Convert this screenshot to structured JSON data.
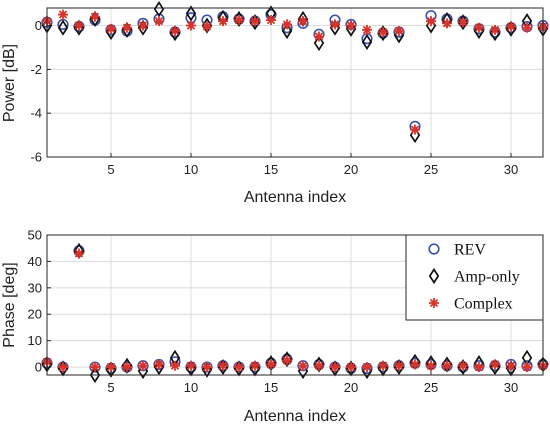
{
  "chart_data": [
    {
      "type": "scatter",
      "xlabel": "Antenna index",
      "ylabel": "Power [dB]",
      "xlim": [
        1,
        32
      ],
      "ylim": [
        -6,
        0.8
      ],
      "xticks": [
        5,
        10,
        15,
        20,
        25,
        30
      ],
      "yticks": [
        0,
        -2,
        -4,
        -6
      ],
      "grid": true,
      "series": [
        {
          "name": "REV",
          "marker": "circle",
          "color": "#3a4fa8",
          "x": [
            1,
            2,
            3,
            4,
            5,
            6,
            7,
            8,
            9,
            10,
            11,
            12,
            13,
            14,
            15,
            16,
            17,
            18,
            19,
            20,
            21,
            22,
            23,
            24,
            25,
            26,
            27,
            28,
            29,
            30,
            31,
            32
          ],
          "values": [
            0.15,
            0.05,
            -0.05,
            0.25,
            -0.2,
            -0.25,
            0.1,
            0.3,
            -0.3,
            0.35,
            0.25,
            0.4,
            0.3,
            0.2,
            0.5,
            -0.1,
            0.1,
            -0.4,
            0.25,
            0.05,
            -0.6,
            -0.35,
            -0.3,
            -4.6,
            0.45,
            0.3,
            0.2,
            -0.15,
            -0.3,
            -0.1,
            -0.05,
            0.0
          ]
        },
        {
          "name": "Amp-only",
          "marker": "diamond",
          "color": "#111111",
          "x": [
            1,
            2,
            3,
            4,
            5,
            6,
            7,
            8,
            9,
            10,
            11,
            12,
            13,
            14,
            15,
            16,
            17,
            18,
            19,
            20,
            21,
            22,
            23,
            24,
            25,
            26,
            27,
            28,
            29,
            30,
            31,
            32
          ],
          "values": [
            0.0,
            -0.1,
            -0.1,
            0.3,
            -0.3,
            -0.2,
            -0.1,
            0.75,
            -0.35,
            0.55,
            0.0,
            0.35,
            0.3,
            0.15,
            0.55,
            -0.25,
            0.3,
            -0.8,
            -0.1,
            -0.15,
            -0.75,
            -0.35,
            -0.45,
            -5.0,
            0.0,
            0.25,
            0.15,
            -0.25,
            -0.35,
            -0.15,
            0.2,
            -0.15
          ]
        },
        {
          "name": "Complex",
          "marker": "star",
          "color": "#d9342b",
          "x": [
            1,
            2,
            3,
            4,
            5,
            6,
            7,
            8,
            9,
            10,
            11,
            12,
            13,
            14,
            15,
            16,
            17,
            18,
            19,
            20,
            21,
            22,
            23,
            24,
            25,
            26,
            27,
            28,
            29,
            30,
            31,
            32
          ],
          "values": [
            0.2,
            0.5,
            0.0,
            0.4,
            -0.15,
            -0.1,
            0.0,
            0.2,
            -0.25,
            0.0,
            -0.05,
            0.2,
            0.25,
            0.2,
            0.25,
            0.05,
            0.2,
            -0.5,
            0.05,
            0.0,
            -0.2,
            -0.3,
            -0.25,
            -4.75,
            0.2,
            0.1,
            0.15,
            -0.1,
            -0.2,
            -0.05,
            -0.1,
            -0.05
          ]
        }
      ]
    },
    {
      "type": "scatter",
      "xlabel": "Antenna index",
      "ylabel": "Phase [deg]",
      "xlim": [
        1,
        32
      ],
      "ylim": [
        -3,
        50
      ],
      "xticks": [
        5,
        10,
        15,
        20,
        25,
        30
      ],
      "yticks": [
        0,
        10,
        20,
        30,
        40,
        50
      ],
      "grid": true,
      "legend": "top-right",
      "series": [
        {
          "name": "REV",
          "marker": "circle",
          "color": "#3a4fa8",
          "x": [
            1,
            2,
            3,
            4,
            5,
            6,
            7,
            8,
            9,
            10,
            11,
            12,
            13,
            14,
            15,
            16,
            17,
            18,
            19,
            20,
            21,
            22,
            23,
            24,
            25,
            26,
            27,
            28,
            29,
            30,
            31,
            32
          ],
          "values": [
            1.5,
            0.0,
            44.0,
            0.0,
            -0.5,
            0.0,
            0.5,
            1.0,
            2.0,
            0.0,
            0.0,
            0.5,
            0.0,
            0.0,
            1.5,
            3.0,
            0.5,
            1.0,
            0.0,
            -0.5,
            -0.5,
            0.0,
            0.5,
            1.5,
            1.0,
            0.5,
            0.0,
            0.5,
            0.5,
            1.0,
            0.5,
            1.0
          ]
        },
        {
          "name": "Amp-only",
          "marker": "diamond",
          "color": "#111111",
          "x": [
            1,
            2,
            3,
            4,
            5,
            6,
            7,
            8,
            9,
            10,
            11,
            12,
            13,
            14,
            15,
            16,
            17,
            18,
            19,
            20,
            21,
            22,
            23,
            24,
            25,
            26,
            27,
            28,
            29,
            30,
            31,
            32
          ],
          "values": [
            1.0,
            -0.5,
            44.0,
            -3.0,
            -1.0,
            0.5,
            -1.5,
            0.0,
            3.5,
            -0.5,
            -1.0,
            0.0,
            -0.5,
            -0.5,
            1.5,
            3.0,
            -1.5,
            1.0,
            -0.5,
            -0.5,
            -1.5,
            -0.5,
            0.0,
            2.0,
            1.5,
            1.0,
            0.0,
            1.5,
            0.0,
            -0.5,
            3.5,
            1.0
          ]
        },
        {
          "name": "Complex",
          "marker": "star",
          "color": "#d9342b",
          "x": [
            1,
            2,
            3,
            4,
            5,
            6,
            7,
            8,
            9,
            10,
            11,
            12,
            13,
            14,
            15,
            16,
            17,
            18,
            19,
            20,
            21,
            22,
            23,
            24,
            25,
            26,
            27,
            28,
            29,
            30,
            31,
            32
          ],
          "values": [
            2.0,
            0.0,
            43.0,
            0.0,
            0.0,
            0.0,
            0.5,
            1.0,
            0.5,
            0.5,
            0.0,
            0.5,
            0.0,
            0.5,
            1.0,
            2.5,
            0.5,
            0.5,
            0.0,
            0.0,
            0.0,
            0.5,
            0.5,
            1.0,
            0.5,
            0.5,
            0.5,
            0.0,
            1.0,
            0.5,
            0.0,
            0.5
          ]
        }
      ]
    }
  ]
}
